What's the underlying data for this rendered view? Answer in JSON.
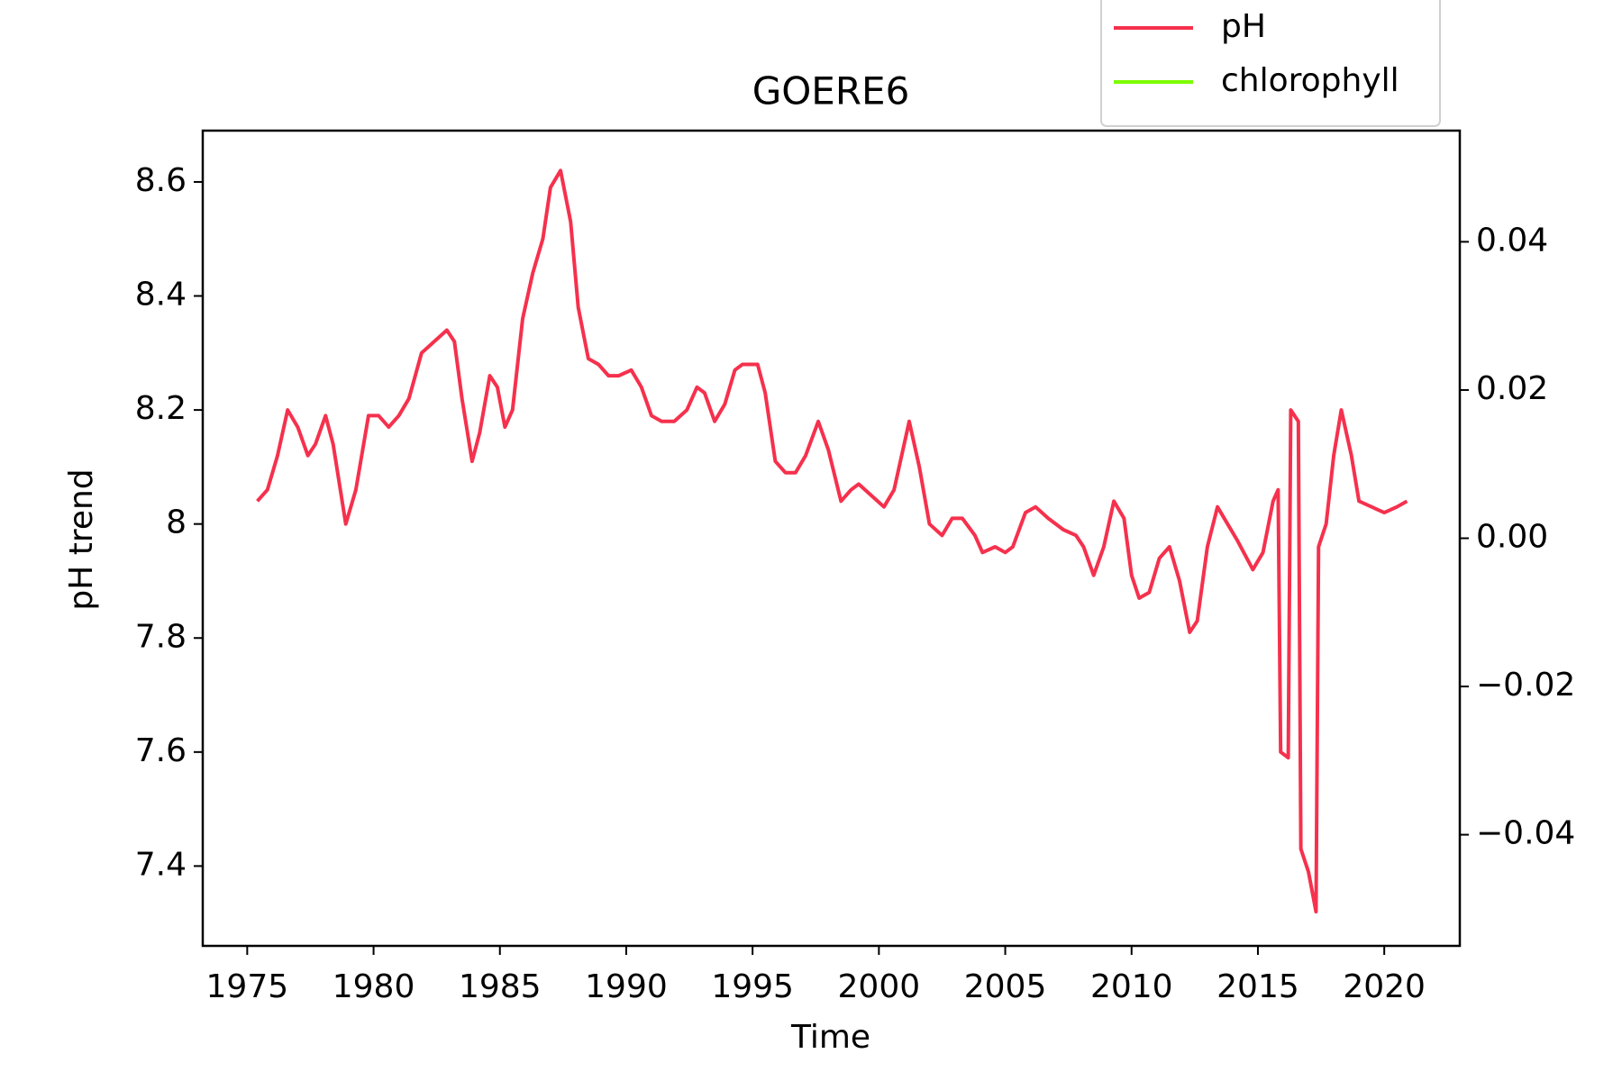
{
  "chart_data": {
    "type": "line",
    "title": "GOERE6",
    "xlabel": "Time",
    "ylabel": "pH trend",
    "xlim": [
      1973.24,
      2022.99
    ],
    "xticks": [
      1975,
      1980,
      1985,
      1990,
      1995,
      2000,
      2005,
      2010,
      2015,
      2020
    ],
    "ylim": [
      7.26,
      8.69
    ],
    "yticks": [
      7.4,
      7.6,
      7.8,
      8.0,
      8.2,
      8.4,
      8.6
    ],
    "y2lim": [
      -0.055,
      0.055
    ],
    "y2ticks": [
      {
        "value": -0.04,
        "label": "−0.04"
      },
      {
        "value": -0.02,
        "label": "−0.02"
      },
      {
        "value": 0,
        "label": "0.00"
      },
      {
        "value": 0.02,
        "label": "0.02"
      },
      {
        "value": 0.04,
        "label": "0.04"
      }
    ],
    "grid": false,
    "legend": "upper right",
    "series": [
      {
        "name": "pH",
        "color": "#f5314d",
        "x": [
          1975.4,
          1975.8,
          1976.2,
          1976.6,
          1977.0,
          1977.4,
          1977.7,
          1978.1,
          1978.4,
          1978.9,
          1979.3,
          1979.8,
          1980.2,
          1980.6,
          1981.0,
          1981.4,
          1981.9,
          1982.4,
          1982.9,
          1983.2,
          1983.5,
          1983.9,
          1984.2,
          1984.6,
          1984.9,
          1985.2,
          1985.5,
          1985.9,
          1986.3,
          1986.7,
          1987.0,
          1987.4,
          1987.8,
          1988.1,
          1988.5,
          1988.9,
          1989.3,
          1989.7,
          1990.2,
          1990.6,
          1991.0,
          1991.4,
          1991.9,
          1992.4,
          1992.8,
          1993.1,
          1993.5,
          1993.9,
          1994.3,
          1994.6,
          1995.2,
          1995.5,
          1995.9,
          1996.3,
          1996.7,
          1997.1,
          1997.6,
          1998.0,
          1998.5,
          1998.9,
          1999.2,
          1999.7,
          2000.2,
          2000.6,
          2001.2,
          2001.6,
          2002.0,
          2002.5,
          2002.9,
          2003.3,
          2003.8,
          2004.1,
          2004.6,
          2005.0,
          2005.3,
          2005.8,
          2006.2,
          2006.7,
          2007.3,
          2007.8,
          2008.1,
          2008.5,
          2008.9,
          2009.3,
          2009.7,
          2010.0,
          2010.3,
          2010.7,
          2011.1,
          2011.5,
          2011.9,
          2012.3,
          2012.6,
          2013.0,
          2013.4,
          2013.8,
          2014.2,
          2014.8,
          2015.2,
          2015.6,
          2015.8,
          2015.9,
          2016.2,
          2016.3,
          2016.6,
          2016.7,
          2017.0,
          2017.3,
          2017.4,
          2017.7,
          2018.0,
          2018.3,
          2018.7,
          2019.0,
          2019.5,
          2020.0,
          2020.5,
          2020.9
        ],
        "values": [
          8.04,
          8.06,
          8.12,
          8.2,
          8.17,
          8.12,
          8.14,
          8.19,
          8.14,
          8.0,
          8.06,
          8.19,
          8.19,
          8.17,
          8.19,
          8.22,
          8.3,
          8.32,
          8.34,
          8.32,
          8.22,
          8.11,
          8.16,
          8.26,
          8.24,
          8.17,
          8.2,
          8.36,
          8.44,
          8.5,
          8.59,
          8.62,
          8.53,
          8.38,
          8.29,
          8.28,
          8.26,
          8.26,
          8.27,
          8.24,
          8.19,
          8.18,
          8.18,
          8.2,
          8.24,
          8.23,
          8.18,
          8.21,
          8.27,
          8.28,
          8.28,
          8.23,
          8.11,
          8.09,
          8.09,
          8.12,
          8.18,
          8.13,
          8.04,
          8.06,
          8.07,
          8.05,
          8.03,
          8.06,
          8.18,
          8.1,
          8.0,
          7.98,
          8.01,
          8.01,
          7.98,
          7.95,
          7.96,
          7.95,
          7.96,
          8.02,
          8.03,
          8.01,
          7.99,
          7.98,
          7.96,
          7.91,
          7.96,
          8.04,
          8.01,
          7.91,
          7.87,
          7.88,
          7.94,
          7.96,
          7.9,
          7.81,
          7.83,
          7.96,
          8.03,
          8.0,
          7.97,
          7.92,
          7.95,
          8.04,
          8.06,
          7.6,
          7.59,
          8.2,
          8.18,
          7.43,
          7.39,
          7.32,
          7.96,
          8.0,
          8.12,
          8.2,
          8.12,
          8.04,
          8.03,
          8.02,
          8.03,
          8.04
        ]
      },
      {
        "name": "chlorophyll",
        "color": "#7cfc00",
        "axis": "y2",
        "x": [],
        "values": []
      }
    ]
  }
}
